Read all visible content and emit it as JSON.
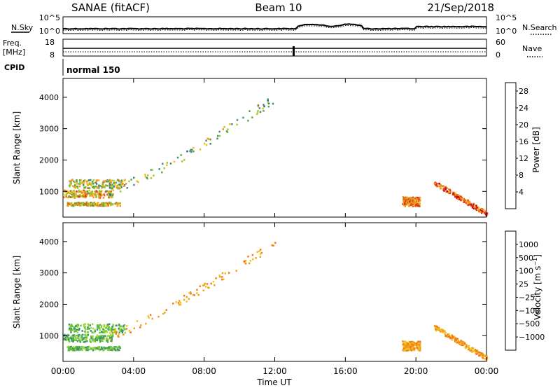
{
  "header": {
    "station": "SANAE (fitACF)",
    "beam": "Beam 10",
    "date": "21/Sep/2018"
  },
  "strips": {
    "nsky": {
      "label": "N.Sky",
      "tick_top": "10^5",
      "tick_bottom": "10^0",
      "right_tick_top": "10^5",
      "right_tick_bottom": "10^0",
      "right_label": "N.Search"
    },
    "freq": {
      "label_line1": "Freq.",
      "label_line2": "[MHz]",
      "tick_top": "18",
      "tick_bottom": "8",
      "right_tick_top": "60",
      "right_tick_bottom": "0",
      "right_label": "Nave"
    },
    "cpid": {
      "label": "CPID",
      "mode": "normal 150"
    }
  },
  "axes": {
    "xlabel": "Time UT",
    "x_ticks": [
      "00:00",
      "04:00",
      "08:00",
      "12:00",
      "16:00",
      "20:00",
      "00:00"
    ],
    "x_range_hours": [
      0,
      24
    ],
    "ylabel": "Slant Range [km]",
    "y_ticks": [
      1000,
      2000,
      3000,
      4000
    ],
    "y_range_km": [
      180,
      4600
    ]
  },
  "chart_data": [
    {
      "type": "heatmap",
      "panel": "power",
      "ylabel": "Slant Range [km]",
      "xlabel": "",
      "colorbar": {
        "label": "Power [dB]",
        "ticks": [
          "4",
          "8",
          "12",
          "16",
          "20",
          "24",
          "28"
        ],
        "range": [
          0,
          30
        ],
        "colors": [
          "#1a1ae6",
          "#2a5aa8",
          "#3f8a7e",
          "#5aa34a",
          "#9ccc2e",
          "#f2b81a",
          "#f2901a",
          "#e8601a",
          "#e02a1a",
          "#cc0000"
        ]
      },
      "features": [
        {
          "name": "near-range band",
          "t": [
            0.0,
            2.8
          ],
          "r": [
            820,
            1060
          ],
          "level": 18
        },
        {
          "name": "upper band",
          "t": [
            0.3,
            3.5
          ],
          "r": [
            1120,
            1400
          ],
          "level": 14
        },
        {
          "name": "low band",
          "t": [
            0.2,
            3.2
          ],
          "r": [
            560,
            680
          ],
          "level": 16
        },
        {
          "name": "rising arc",
          "t": [
            2.5,
            12.0
          ],
          "r": [
            1000,
            4000
          ],
          "level": 12
        },
        {
          "name": "evening patch",
          "t": [
            19.2,
            20.2
          ],
          "r": [
            550,
            850
          ],
          "level": 20
        },
        {
          "name": "descending band",
          "t": [
            21.0,
            24.0
          ],
          "r": [
            300,
            1300
          ],
          "level": 24
        }
      ]
    },
    {
      "type": "heatmap",
      "panel": "velocity",
      "ylabel": "Slant Range [km]",
      "xlabel": "Time UT",
      "colorbar": {
        "label": "Velocity [m s^-1]",
        "ticks": [
          "1000",
          "500",
          "100",
          "25",
          "−25",
          "−100",
          "−500",
          "−1000"
        ],
        "colors": [
          "#1f3fbf",
          "#2a6ab0",
          "#3a9070",
          "#5cbf3a",
          "#9cd83a",
          "#c8c8c8",
          "#f2c21a",
          "#f2a01a",
          "#f27a1a",
          "#ee4a1a",
          "#dd0000"
        ]
      },
      "features": [
        {
          "name": "near-range band",
          "t": [
            0.0,
            2.8
          ],
          "r": [
            820,
            1060
          ],
          "velocity": 100
        },
        {
          "name": "upper band",
          "t": [
            0.3,
            3.5
          ],
          "r": [
            1120,
            1400
          ],
          "velocity": 100
        },
        {
          "name": "low band",
          "t": [
            0.2,
            3.2
          ],
          "r": [
            560,
            680
          ],
          "velocity": 100
        },
        {
          "name": "rising arc",
          "t": [
            2.5,
            12.0
          ],
          "r": [
            1000,
            4000
          ],
          "velocity": -100
        },
        {
          "name": "evening patch",
          "t": [
            19.2,
            20.2
          ],
          "r": [
            550,
            850
          ],
          "velocity": -100
        },
        {
          "name": "descending band",
          "t": [
            21.0,
            24.0
          ],
          "r": [
            300,
            1300
          ],
          "velocity": -100
        }
      ]
    }
  ]
}
